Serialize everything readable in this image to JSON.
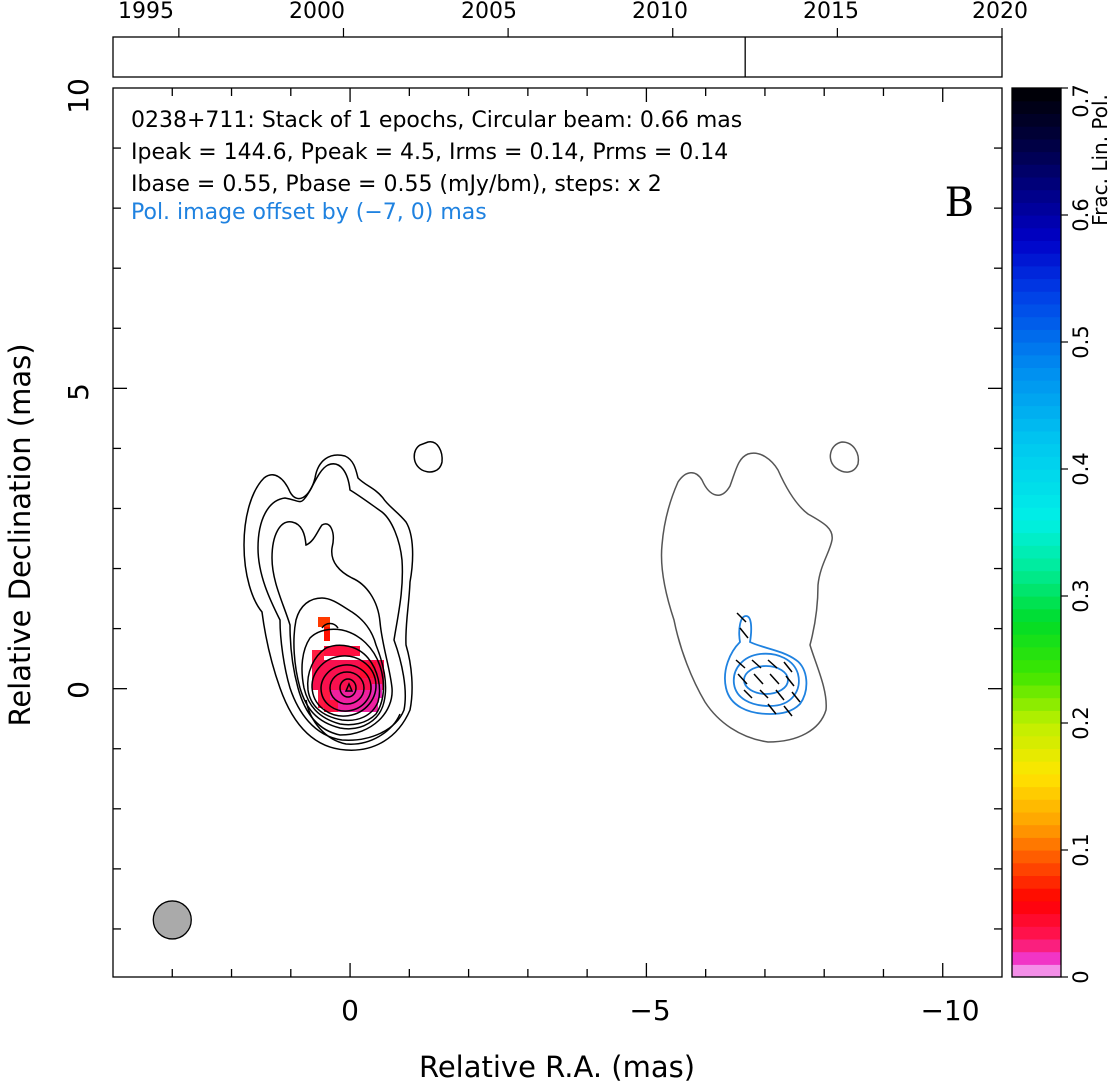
{
  "timeline": {
    "ticks": [
      "1995",
      "2000",
      "2005",
      "2010",
      "2015",
      "2020"
    ],
    "tick_years": [
      1995,
      2000,
      2005,
      2010,
      2015,
      2020
    ],
    "range": [
      1993.0,
      2020.0
    ],
    "epoch_year": 2012.2
  },
  "annotations": {
    "line1": "0238+711: Stack of 1 epochs, Circular beam: 0.66 mas",
    "line2": "Ipeak = 144.6, Ppeak = 4.5, Irms = 0.14, Prms = 0.14",
    "line3": "Ibase = 0.55, Pbase = 0.55 (mJy/bm), steps: x 2",
    "line4": "Pol. image offset by (−7, 0) mas",
    "panel_letter": "B"
  },
  "colors": {
    "pol_annotation": "#1f82e0",
    "stokes_i_contours": "#000000",
    "pol_i_contour": "#555555",
    "pol_contours": "#1f82e0",
    "beam": "#aaaaaa"
  },
  "chart_data": {
    "type": "heatmap",
    "xlabel": "Relative R.A. (mas)",
    "ylabel": "Relative Declination (mas)",
    "xlim": [
      4.0,
      -11.0
    ],
    "ylim": [
      -4.8,
      10.0
    ],
    "x_ticks": [
      0,
      -5,
      -10
    ],
    "x_tick_labels": [
      "0",
      "−5",
      "−10"
    ],
    "y_ticks": [
      0,
      5,
      10
    ],
    "y_tick_labels": [
      "0",
      "5",
      "10"
    ],
    "colorbar": {
      "label": "Frac. Lin. Pol.",
      "range": [
        0.0,
        0.7
      ],
      "ticks": [
        0,
        0.1,
        0.2,
        0.3,
        0.4,
        0.5,
        0.6,
        0.7
      ],
      "tick_labels": [
        "0",
        "0.1",
        "0.2",
        "0.3",
        "0.4",
        "0.5",
        "0.6",
        "0.7"
      ]
    },
    "beam": {
      "x": 3.0,
      "y": -3.85,
      "diameter_mas": 0.66
    },
    "pol_offset_mas": [
      -7,
      0
    ],
    "core_frac_pol_region": {
      "x_range": [
        -0.5,
        0.6
      ],
      "y_range": [
        -0.5,
        1.2
      ],
      "frac_pol_range": [
        0.01,
        0.1
      ]
    }
  }
}
